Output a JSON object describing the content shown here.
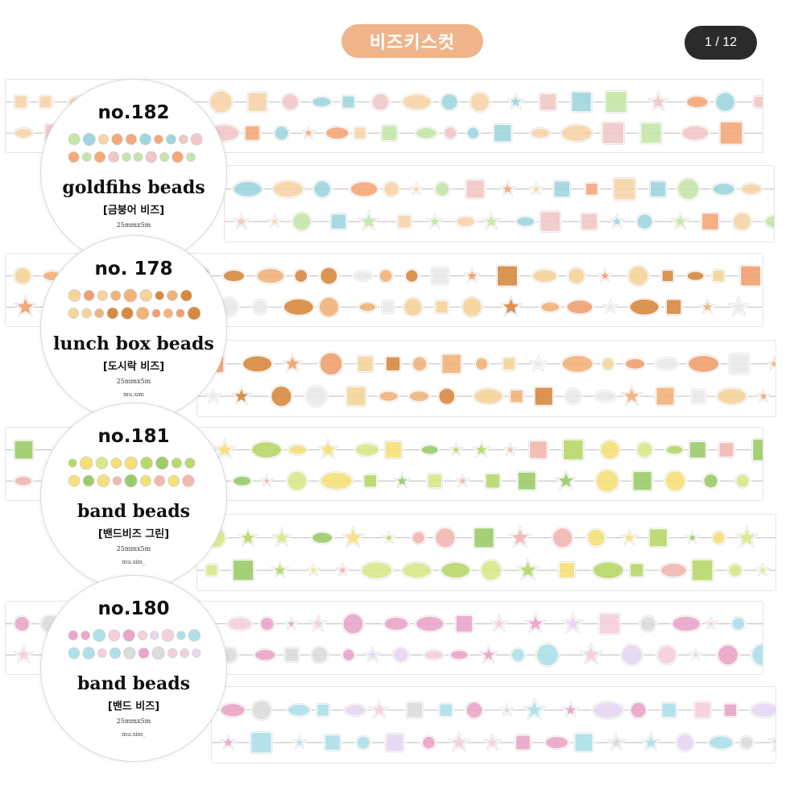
{
  "header": {
    "title": "비즈키스컷",
    "page_counter": "1 / 12"
  },
  "colors": {
    "title_pill": "#f0b48a",
    "counter_bg": "#2b2b2b",
    "goldfish": "#f5a878",
    "goldfish_aqua": "#9fd6df",
    "lunchbox": "#f2b37b",
    "lunchbox_dark": "#d8893f",
    "band_green": "#b9d86a",
    "band_lime": "#d8e88a",
    "band180_pink": "#eaa6c8",
    "band180_blue": "#aee0ea"
  },
  "products": [
    {
      "number": "no.182",
      "name": "goldfihs beads",
      "korean": "[금붕어 비즈]",
      "size": "25mmx5m",
      "maker": ""
    },
    {
      "number": "no. 178",
      "name": "lunch box beads",
      "korean": "[도시락 비즈]",
      "size": "25mmx5m",
      "maker": "mu.sim"
    },
    {
      "number": "no.181",
      "name": "band beads",
      "korean": "[밴드비즈 그린]",
      "size": "25mmx5m",
      "maker": "mu.sim_"
    },
    {
      "number": "no.180",
      "name": "band beads",
      "korean": "[밴드 비즈]",
      "size": "25mmx5m",
      "maker": "mu.sim_"
    }
  ]
}
